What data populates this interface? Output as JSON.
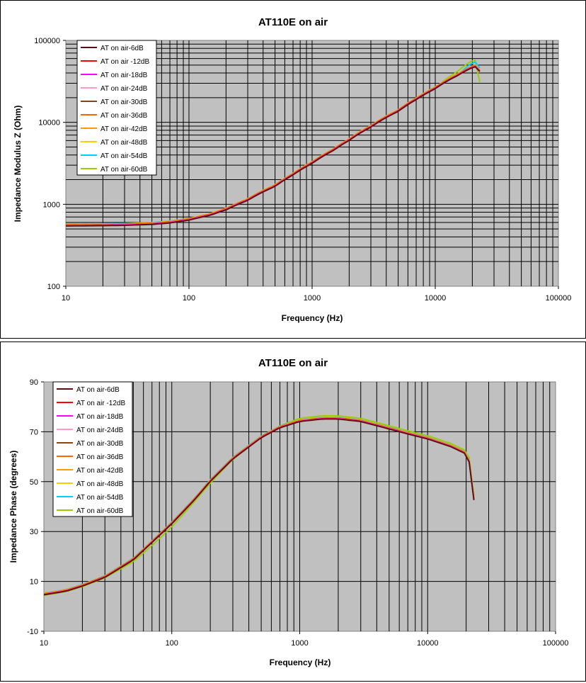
{
  "charts": [
    {
      "type": "line",
      "title": "AT110E on air",
      "xlabel": "Frequency (Hz)",
      "ylabel": "Impedance Modulus Z (Ohm)",
      "x_scale": "log",
      "y_scale": "log",
      "xlim": [
        10,
        100000
      ],
      "ylim": [
        100,
        100000
      ],
      "x_ticks": [
        "10",
        "100",
        "1000",
        "10000",
        "100000"
      ],
      "y_ticks": [
        "100",
        "1000",
        "10000",
        "100000"
      ],
      "grid": true,
      "plot_background": "#c0c0c0",
      "legend_position": "top-left"
    },
    {
      "type": "line",
      "title": "AT110E on air",
      "xlabel": "Frequency (Hz)",
      "ylabel": "Impedance Phase (degrees)",
      "x_scale": "log",
      "y_scale": "linear",
      "xlim": [
        10,
        100000
      ],
      "ylim": [
        -10,
        90
      ],
      "x_ticks": [
        "10",
        "100",
        "1000",
        "10000",
        "100000"
      ],
      "y_ticks": [
        "-10",
        "10",
        "30",
        "50",
        "70",
        "90"
      ],
      "grid": true,
      "plot_background": "#c0c0c0",
      "legend_position": "top-left"
    }
  ],
  "series": [
    {
      "name": "AT on air-6dB",
      "color": "#5a1010"
    },
    {
      "name": "AT on air -12dB",
      "color": "#ff0000"
    },
    {
      "name": "AT on air-18dB",
      "color": "#ff00ff"
    },
    {
      "name": "AT on air-24dB",
      "color": "#ff99cc"
    },
    {
      "name": "AT on air-30dB",
      "color": "#8b4513"
    },
    {
      "name": "AT on air-36dB",
      "color": "#ff6600"
    },
    {
      "name": "AT on air-42dB",
      "color": "#ff9900"
    },
    {
      "name": "AT on air-48dB",
      "color": "#ffcc00"
    },
    {
      "name": "AT on air-54dB",
      "color": "#00ccff"
    },
    {
      "name": "AT on air-60dB",
      "color": "#99cc00"
    }
  ],
  "chart_data": [
    {
      "type": "line",
      "title": "AT110E on air",
      "x": [
        10,
        20,
        30,
        50,
        70,
        100,
        150,
        200,
        300,
        500,
        700,
        1000,
        1500,
        2000,
        3000,
        5000,
        7000,
        10000,
        15000,
        20000,
        22000,
        23000
      ],
      "series_values": {
        "reference": [
          560,
          565,
          570,
          585,
          610,
          660,
          760,
          880,
          1150,
          1700,
          2350,
          3250,
          4700,
          6200,
          9000,
          14000,
          19500,
          26500,
          38000,
          48000,
          50000,
          43000
        ],
        "AT on air-54dB": [
          560,
          565,
          570,
          585,
          610,
          655,
          750,
          860,
          1120,
          1650,
          2300,
          3150,
          4600,
          6100,
          8800,
          13800,
          19000,
          25000,
          36000,
          52000,
          54000,
          45000
        ],
        "AT on air-60dB": [
          550,
          555,
          560,
          575,
          600,
          645,
          735,
          845,
          1100,
          1620,
          2250,
          3100,
          4500,
          6000,
          8700,
          13600,
          18800,
          25500,
          40000,
          55000,
          56000,
          30000
        ]
      }
    },
    {
      "type": "line",
      "title": "AT110E on air",
      "x": [
        10,
        15,
        20,
        30,
        50,
        70,
        100,
        150,
        200,
        300,
        500,
        700,
        1000,
        1500,
        2000,
        3000,
        5000,
        7000,
        10000,
        15000,
        20000,
        21000,
        22000,
        23000
      ],
      "series_values": {
        "reference": [
          5,
          6.5,
          8.5,
          12,
          19,
          26,
          33.5,
          43,
          50.5,
          59.5,
          68,
          72,
          74.5,
          75.5,
          75.5,
          74.5,
          71.5,
          69.5,
          67.5,
          64.5,
          61.5,
          59,
          52,
          43
        ],
        "AT on air-60dB": [
          4,
          5.5,
          7.5,
          11,
          17.5,
          24,
          31.5,
          41.5,
          49,
          58.5,
          67.5,
          72,
          75,
          76,
          76,
          75,
          72,
          70,
          68,
          65,
          62,
          60,
          53,
          44
        ]
      }
    }
  ]
}
